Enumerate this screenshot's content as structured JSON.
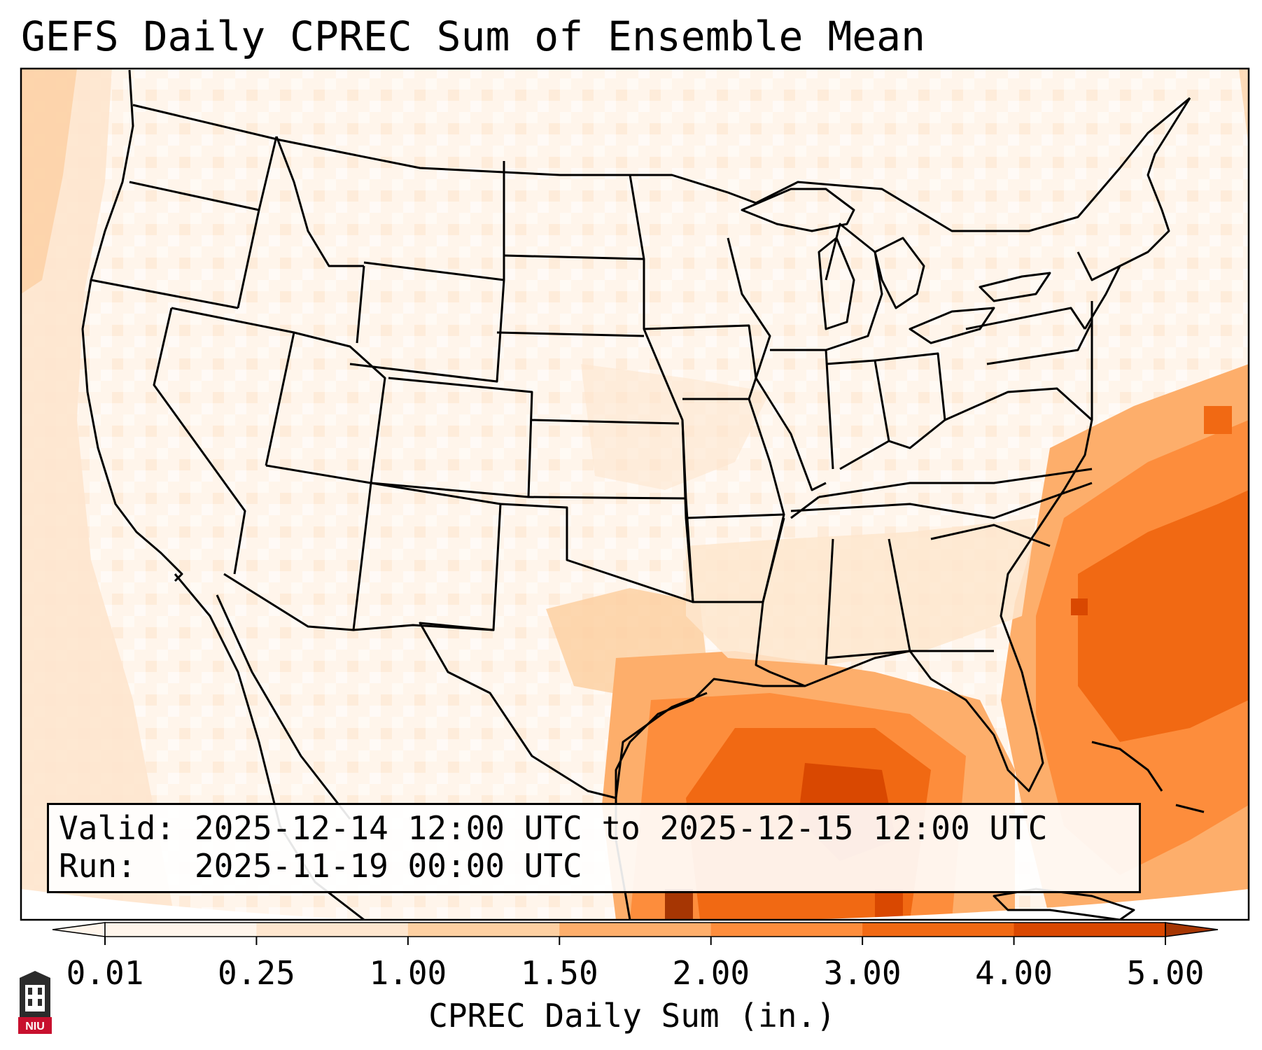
{
  "title": "GEFS Daily CPREC Sum of Ensemble Mean",
  "info": {
    "valid_label": "Valid:",
    "valid_value": "2025-12-14 12:00 UTC to 2025-12-15 12:00 UTC",
    "run_label": "Run:",
    "run_value": "2025-11-19 00:00 UTC"
  },
  "colorbar": {
    "label": "CPREC Daily Sum (in.)",
    "ticks": [
      "0.01",
      "0.25",
      "1.00",
      "1.50",
      "2.00",
      "3.00",
      "4.00",
      "5.00"
    ],
    "colors": [
      "#fff5eb",
      "#fee6ce",
      "#fdd0a2",
      "#fdae6b",
      "#fd8d3c",
      "#f16913",
      "#d94801",
      "#a63603"
    ],
    "extend": "both"
  },
  "map": {
    "region": "Contiguous United States, Gulf of Mexico, western Atlantic",
    "field": "CPREC daily sum (in.)",
    "max_region": "Gulf of Mexico and western Atlantic east of the Carolinas",
    "icons": [
      "niu-logo"
    ]
  },
  "logo": {
    "text": "NIU"
  }
}
